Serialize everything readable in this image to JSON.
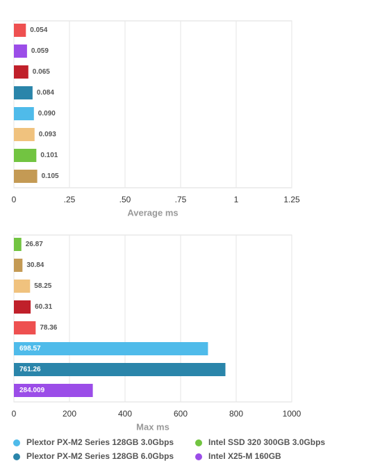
{
  "chart_data": [
    {
      "type": "bar",
      "orientation": "horizontal",
      "xlabel": "Average ms",
      "values": [
        0.054,
        0.059,
        0.065,
        0.084,
        0.09,
        0.093,
        0.101,
        0.105
      ],
      "value_labels": [
        "0.054",
        "0.059",
        "0.065",
        "0.084",
        "0.090",
        "0.093",
        "0.101",
        "0.105"
      ],
      "colors": [
        "#ee5050",
        "#9b4de8",
        "#c0202a",
        "#2a85aa",
        "#4fbbea",
        "#f0c27e",
        "#72c441",
        "#c49a54"
      ],
      "xlim": [
        0,
        1.25
      ],
      "xticks": [
        0,
        {
          "value": 0.25,
          "label": ".25"
        },
        {
          "value": 0.5,
          "label": ".50"
        },
        {
          "value": 0.75,
          "label": ".75"
        },
        1,
        1.25
      ],
      "grid": true
    },
    {
      "type": "bar",
      "orientation": "horizontal",
      "xlabel": "Max ms",
      "values": [
        26.87,
        30.84,
        58.25,
        60.31,
        78.36,
        698.57,
        761.26,
        284.009
      ],
      "colors": [
        "#72c441",
        "#c49a54",
        "#f0c27e",
        "#c0202a",
        "#ee5050",
        "#4fbbea",
        "#2a85aa",
        "#9b4de8"
      ],
      "xlim": [
        0,
        1000
      ],
      "xticks": [
        0,
        200,
        400,
        600,
        800,
        1000
      ],
      "grid": true
    }
  ],
  "legend": [
    {
      "name": "Plextor PX-M2 Series 128GB 3.0Gbps",
      "color": "#4fbbea"
    },
    {
      "name": "Intel SSD 320 300GB 3.0Gbps",
      "color": "#72c441"
    },
    {
      "name": "Plextor PX-M2 Series 128GB 6.0Gbps",
      "color": "#2a85aa"
    },
    {
      "name": "Intel X25-M 160GB",
      "color": "#9b4de8"
    }
  ]
}
